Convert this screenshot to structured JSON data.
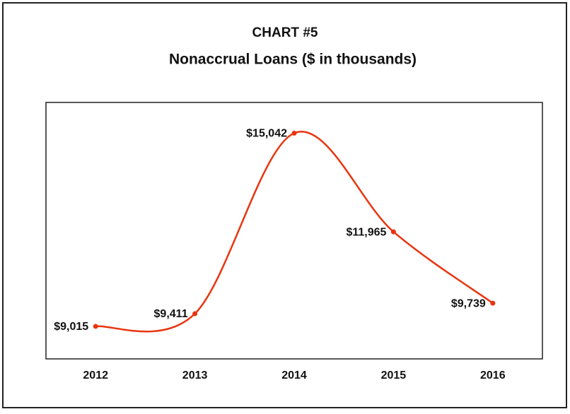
{
  "chart_data": {
    "type": "line",
    "title": "CHART #5",
    "subtitle": "Nonaccrual Loans ($ in thousands)",
    "categories": [
      "2012",
      "2013",
      "2014",
      "2015",
      "2016"
    ],
    "values": [
      9015,
      9411,
      15042,
      11965,
      9739
    ],
    "value_labels": [
      "$9,015",
      "$9,411",
      "$15,042",
      "$11,965",
      "$9,739"
    ],
    "color": "#e8340f",
    "ylim": [
      8000,
      16000
    ]
  }
}
